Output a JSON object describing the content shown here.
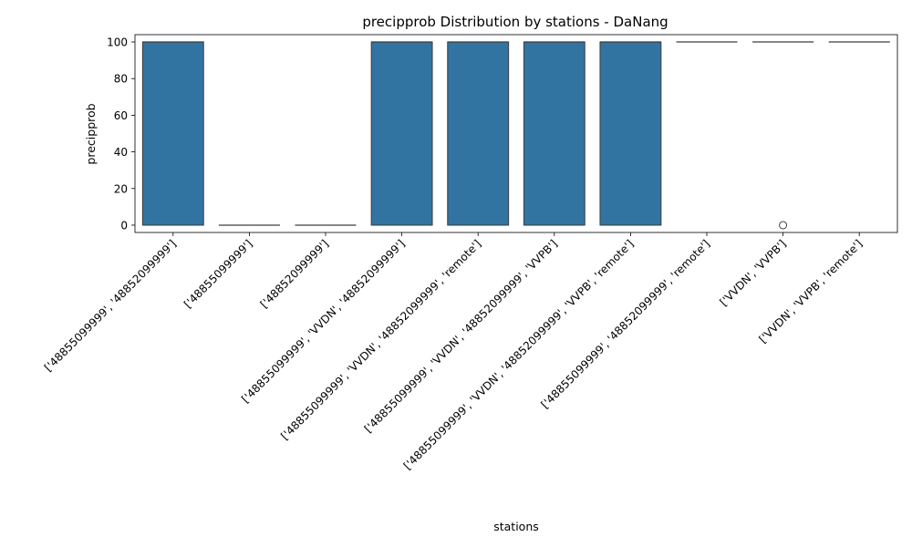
{
  "chart_data": {
    "type": "box",
    "title": "precipprob Distribution by stations - DaNang",
    "xlabel": "stations",
    "ylabel": "precipprob",
    "ylim": [
      -4,
      104
    ],
    "yticks": [
      0,
      20,
      40,
      60,
      80,
      100
    ],
    "grid": false,
    "legend": "none",
    "color": "#3274a1",
    "categories": [
      "['48855099999', '48852099999']",
      "['48855099999']",
      "['48852099999']",
      "['48855099999', 'VVDN', '48852099999']",
      "['48855099999', 'VVDN', '48852099999', 'remote']",
      "['48855099999', 'VVDN', '48852099999', 'VVPB']",
      "['48855099999', 'VVDN', '48852099999', 'VVPB', 'remote']",
      "['48855099999', '48852099999', 'remote']",
      "['VVDN', 'VVPB']",
      "['VVDN', 'VVPB', 'remote']"
    ],
    "boxes": [
      {
        "min": 0,
        "q1": 0,
        "median": 100,
        "q3": 100,
        "max": 100,
        "outliers": []
      },
      {
        "min": 0,
        "q1": 0,
        "median": 0,
        "q3": 0,
        "max": 0,
        "outliers": []
      },
      {
        "min": 0,
        "q1": 0,
        "median": 0,
        "q3": 0,
        "max": 0,
        "outliers": []
      },
      {
        "min": 0,
        "q1": 0,
        "median": 100,
        "q3": 100,
        "max": 100,
        "outliers": []
      },
      {
        "min": 0,
        "q1": 0,
        "median": 100,
        "q3": 100,
        "max": 100,
        "outliers": []
      },
      {
        "min": 0,
        "q1": 0,
        "median": 100,
        "q3": 100,
        "max": 100,
        "outliers": []
      },
      {
        "min": 0,
        "q1": 0,
        "median": 100,
        "q3": 100,
        "max": 100,
        "outliers": []
      },
      {
        "min": 100,
        "q1": 100,
        "median": 100,
        "q3": 100,
        "max": 100,
        "outliers": []
      },
      {
        "min": 100,
        "q1": 100,
        "median": 100,
        "q3": 100,
        "max": 100,
        "outliers": [
          0
        ]
      },
      {
        "min": 100,
        "q1": 100,
        "median": 100,
        "q3": 100,
        "max": 100,
        "outliers": []
      }
    ]
  }
}
